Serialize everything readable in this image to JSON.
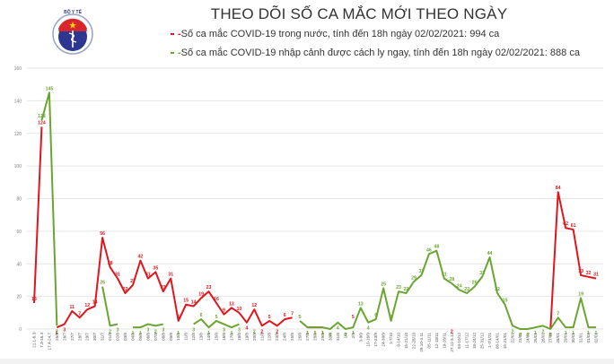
{
  "header": {
    "title": "THEO DÕI SỐ CA MẮC MỚI THEO NGÀY",
    "logo": {
      "top_text": "BỘ Y TẾ",
      "bottom_text": "MINISTRY OF HEALTH",
      "icon": "caduceus-icon"
    }
  },
  "legend": [
    {
      "label": "-Số ca mắc COVID-19 trong nước, tính đến 18h ngày 02/02/2021: 994 ca",
      "color": "#e0161c"
    },
    {
      "label": "-Số ca mắc COVID-19 nhập cảnh được cách ly ngay, tính đến 18h ngày 02/02/2021: 888 ca",
      "color": "#6aa532"
    }
  ],
  "colors": {
    "domestic": "#e0161c",
    "imported": "#6aa532",
    "grid": "#e6e6e6",
    "axis_text": "#7f7f7f"
  },
  "chart_data": {
    "type": "line",
    "title": "THEO DÕI SỐ CA MẮC MỚI THEO NGÀY",
    "xlabel": "",
    "ylabel": "",
    "ylim": [
      0,
      160
    ],
    "yticks": [
      0,
      20,
      40,
      60,
      80,
      100,
      120,
      140,
      160
    ],
    "grid": true,
    "legend_position": "top",
    "categories": [
      "21.1-6.3",
      "7.3-16.4",
      "17.4-24.7",
      "25/7",
      "26/7",
      "27/7",
      "28/7",
      "29/7",
      "30/7",
      "31/7",
      "01/8",
      "02/8",
      "03/8",
      "04/8",
      "05/8",
      "06/8",
      "07/8",
      "08/8",
      "09/8",
      "10/8",
      "11/8",
      "12/8",
      "13/8",
      "14/8",
      "15/8",
      "16/8",
      "17/8",
      "18/8",
      "19/8",
      "20/8",
      "21/8",
      "22/8",
      "23/8",
      "24/8",
      "25/8",
      "26/8",
      "27/8",
      "28/8",
      "29/8",
      "30/8",
      "31/8",
      "1/9",
      "2/9",
      "3-9/9",
      "10-16/9",
      "17-23/9",
      "24-30/9",
      "1-7/10",
      "8-14/10",
      "15-21/10",
      "22-28/10",
      "29.10-4.11",
      "05-11/11",
      "12-18/11",
      "19-26/11",
      "27.11-3.12",
      "04-10/12",
      "11-17/12",
      "18-24/12",
      "25-31/12",
      "1-7/1/21",
      "08-14/01",
      "15-21/01",
      "22/01",
      "23/01",
      "24/01",
      "25/01",
      "26/01",
      "27/01",
      "28/01",
      "29/01",
      "30/01",
      "31/01",
      "01/02",
      "02/02"
    ],
    "series": [
      {
        "name": "Số ca mắc COVID-19 trong nước",
        "color": "#e0161c",
        "values": [
          16,
          124,
          null,
          1,
          3,
          11,
          7,
          12,
          14,
          56,
          38,
          31,
          22,
          27,
          42,
          31,
          35,
          23,
          31,
          5,
          15,
          14,
          19,
          23,
          16,
          9,
          13,
          10,
          4,
          12,
          2,
          5,
          2,
          6,
          7,
          null,
          1,
          1,
          1,
          null,
          null,
          null,
          5,
          null,
          null,
          null,
          null,
          null,
          null,
          null,
          null,
          null,
          null,
          null,
          null,
          2,
          null,
          null,
          null,
          null,
          null,
          null,
          null,
          null,
          null,
          null,
          null,
          null,
          0,
          84,
          62,
          61,
          33,
          32,
          31
        ]
      },
      {
        "name": "Số ca mắc COVID-19 nhập cảnh được cách ly ngay",
        "color": "#6aa532",
        "values": [
          null,
          128,
          145,
          2,
          null,
          null,
          null,
          null,
          null,
          26,
          2,
          3,
          null,
          1,
          1,
          3,
          2,
          3,
          null,
          1,
          null,
          3,
          6,
          1,
          5,
          3,
          1,
          3,
          null,
          2,
          null,
          null,
          null,
          null,
          null,
          5,
          1,
          1,
          1,
          0,
          4,
          0,
          1,
          13,
          4,
          6,
          25,
          5,
          23,
          22,
          29,
          33,
          46,
          48,
          31,
          28,
          24,
          22,
          26,
          32,
          44,
          22,
          15,
          2,
          0,
          0,
          1,
          2,
          0,
          7,
          1,
          1,
          19,
          1,
          1
        ]
      }
    ]
  }
}
